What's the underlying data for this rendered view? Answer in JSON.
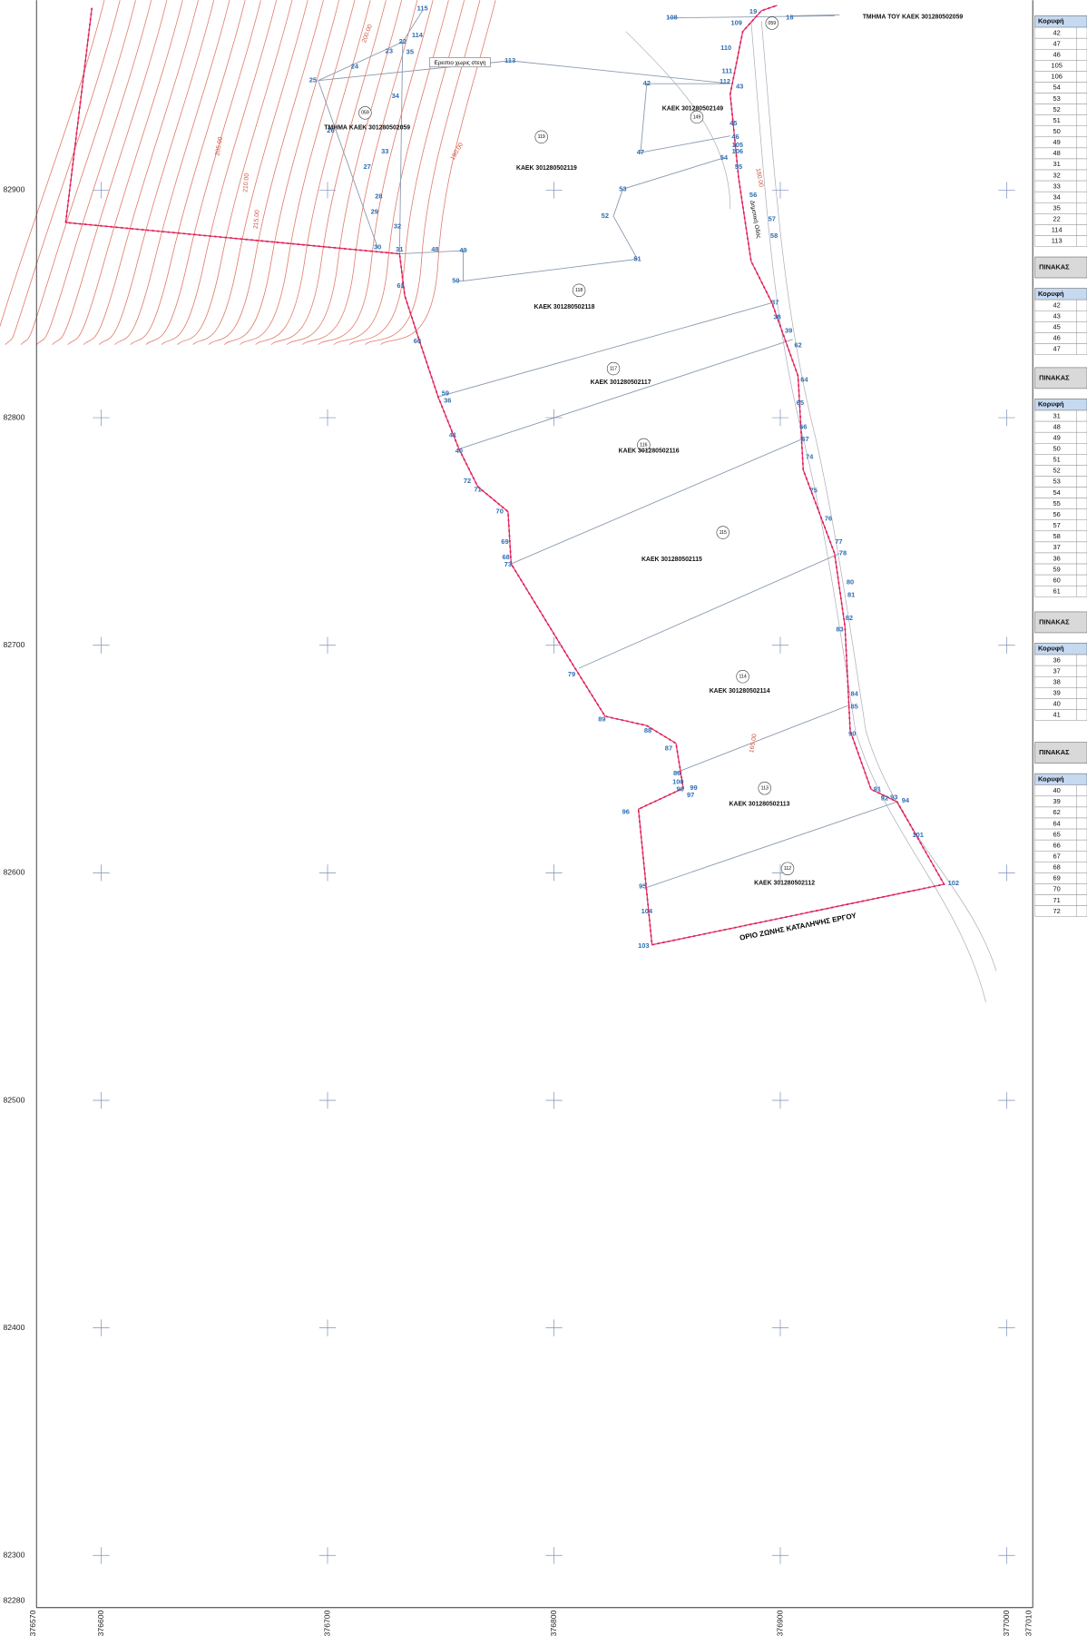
{
  "map": {
    "x_ticks": [
      376570,
      376600,
      376700,
      376800,
      376900,
      377000,
      377010
    ],
    "y_ticks": [
      82280,
      82300,
      82400,
      82500,
      82600,
      82700,
      82800,
      82900
    ],
    "vertices": [
      "115",
      "22",
      "114",
      "23",
      "35",
      "24",
      "113",
      "25",
      "34",
      "26",
      "33",
      "27",
      "28",
      "29",
      "32",
      "30",
      "31",
      "48",
      "49",
      "61",
      "50",
      "51",
      "52",
      "53",
      "42",
      "47",
      "108",
      "109",
      "19",
      "18",
      "110",
      "111",
      "112",
      "43",
      "45",
      "46",
      "105",
      "106",
      "54",
      "55",
      "56",
      "57",
      "58",
      "37",
      "38",
      "39",
      "62",
      "64",
      "65",
      "66",
      "67",
      "74",
      "75",
      "76",
      "77",
      "78",
      "80",
      "81",
      "82",
      "83",
      "84",
      "85",
      "90",
      "91",
      "92",
      "93",
      "94",
      "101",
      "102",
      "60",
      "59",
      "36",
      "41",
      "40",
      "72",
      "71",
      "70",
      "69",
      "68",
      "73",
      "79",
      "89",
      "88",
      "87",
      "86",
      "100",
      "98",
      "99",
      "97",
      "96",
      "95",
      "104",
      "103"
    ],
    "parcels": [
      {
        "number": "059",
        "label": "ΤΜΗΜΑ ΚΑΕΚ 301280502059"
      },
      {
        "number": "119",
        "label": "ΚΑΕΚ 301280502119"
      },
      {
        "number": "149",
        "label": "ΚΑΕΚ 301280502149"
      },
      {
        "number": "118",
        "label": "ΚΑΕΚ 301280502118"
      },
      {
        "number": "117",
        "label": "ΚΑΕΚ 301280502117"
      },
      {
        "number": "116",
        "label": "ΚΑΕΚ 301280502116"
      },
      {
        "number": "115",
        "label": "ΚΑΕΚ 301280502115"
      },
      {
        "number": "114",
        "label": "ΚΑΕΚ 301280502114"
      },
      {
        "number": "113",
        "label": "ΚΑΕΚ 301280502113"
      },
      {
        "number": "112",
        "label": "ΚΑΕΚ 301280502112"
      },
      {
        "number": "059",
        "label": "ΤΜΗΜΑ ΤΟΥ ΚΑΕΚ 301280502059"
      }
    ],
    "contours": [
      "200.00",
      "205.00",
      "210.00",
      "215.00",
      "190.00",
      "180.00",
      "165.00"
    ],
    "ruin": "Ερειπιο χωρις στεγη",
    "road": "Δημοτική Οδός",
    "zone": "ΟΡΙΟ ΖΩΝΗΣ ΚΑΤΑΛΗΨΗΣ ΕΡΓΟΥ"
  },
  "tables": [
    {
      "header": "Κορυφή",
      "rows": [
        "42",
        "47",
        "46",
        "105",
        "106",
        "54",
        "53",
        "52",
        "51",
        "50",
        "49",
        "48",
        "31",
        "32",
        "33",
        "34",
        "35",
        "22",
        "114",
        "113"
      ]
    },
    {
      "title": "ΠΙΝΑΚΑΣ",
      "header": "Κορυφή",
      "rows": [
        "42",
        "43",
        "45",
        "46",
        "47"
      ]
    },
    {
      "title": "ΠΙΝΑΚΑΣ",
      "header": "Κορυφή",
      "rows": [
        "31",
        "48",
        "49",
        "50",
        "51",
        "52",
        "53",
        "54",
        "55",
        "56",
        "57",
        "58",
        "37",
        "36",
        "59",
        "60",
        "61"
      ]
    },
    {
      "title": "ΠΙΝΑΚΑΣ",
      "header": "Κορυφή",
      "rows": [
        "36",
        "37",
        "38",
        "39",
        "40",
        "41"
      ]
    },
    {
      "title": "ΠΙΝΑΚΑΣ",
      "header": "Κορυφή",
      "rows": [
        "40",
        "39",
        "62",
        "64",
        "65",
        "66",
        "67",
        "68",
        "69",
        "70",
        "71",
        "72"
      ]
    }
  ]
}
